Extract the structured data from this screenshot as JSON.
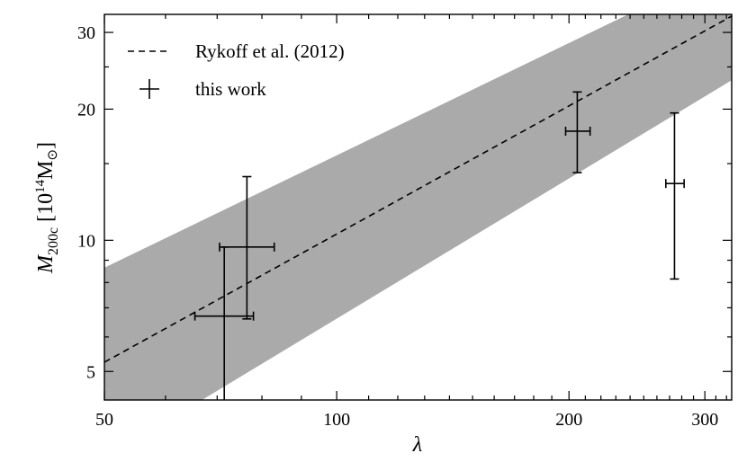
{
  "chart_data": {
    "type": "scatter",
    "title": "",
    "xlabel": "λ",
    "ylabel_main": "M",
    "ylabel_sub": "200c",
    "ylabel_unit_prefix": " [10",
    "ylabel_unit_exp": "14",
    "ylabel_unit_suffix": "M",
    "ylabel_unit_sub": "⊙",
    "ylabel_unit_close": "]",
    "x_scale": "log",
    "y_scale": "log",
    "xlim": [
      50,
      325
    ],
    "ylim": [
      4.3,
      33
    ],
    "xticks": [
      50,
      100,
      200,
      300
    ],
    "xtick_labels": [
      "50",
      "100",
      "200",
      "300"
    ],
    "yticks": [
      5,
      10,
      20,
      30
    ],
    "ytick_labels": [
      "5",
      "10",
      "20",
      "30"
    ],
    "grid": false,
    "legend_position": "top-left",
    "relation": {
      "name": "Rykoff et al. (2012)",
      "style": "dashed",
      "color": "#000000",
      "x": [
        50,
        325
      ],
      "y": [
        5.25,
        32.7
      ],
      "band_lower": [
        3.15,
        23.3
      ],
      "band_upper": [
        8.65,
        43.0
      ],
      "band_color": "#aaaaaa"
    },
    "series": [
      {
        "name": "this work",
        "color": "#000000",
        "points": [
          {
            "x": 71.5,
            "y": 6.7,
            "x_lo": 65.5,
            "x_hi": 78.0,
            "y_lo": 3.9,
            "y_hi": 9.65
          },
          {
            "x": 76.5,
            "y": 9.65,
            "x_lo": 70.5,
            "x_hi": 83.0,
            "y_lo": 6.6,
            "y_hi": 14.0
          },
          {
            "x": 205,
            "y": 17.8,
            "x_lo": 198,
            "x_hi": 213,
            "y_lo": 14.3,
            "y_hi": 21.9
          },
          {
            "x": 274,
            "y": 13.5,
            "x_lo": 267,
            "x_hi": 282,
            "y_lo": 8.15,
            "y_hi": 19.6
          }
        ]
      }
    ]
  }
}
